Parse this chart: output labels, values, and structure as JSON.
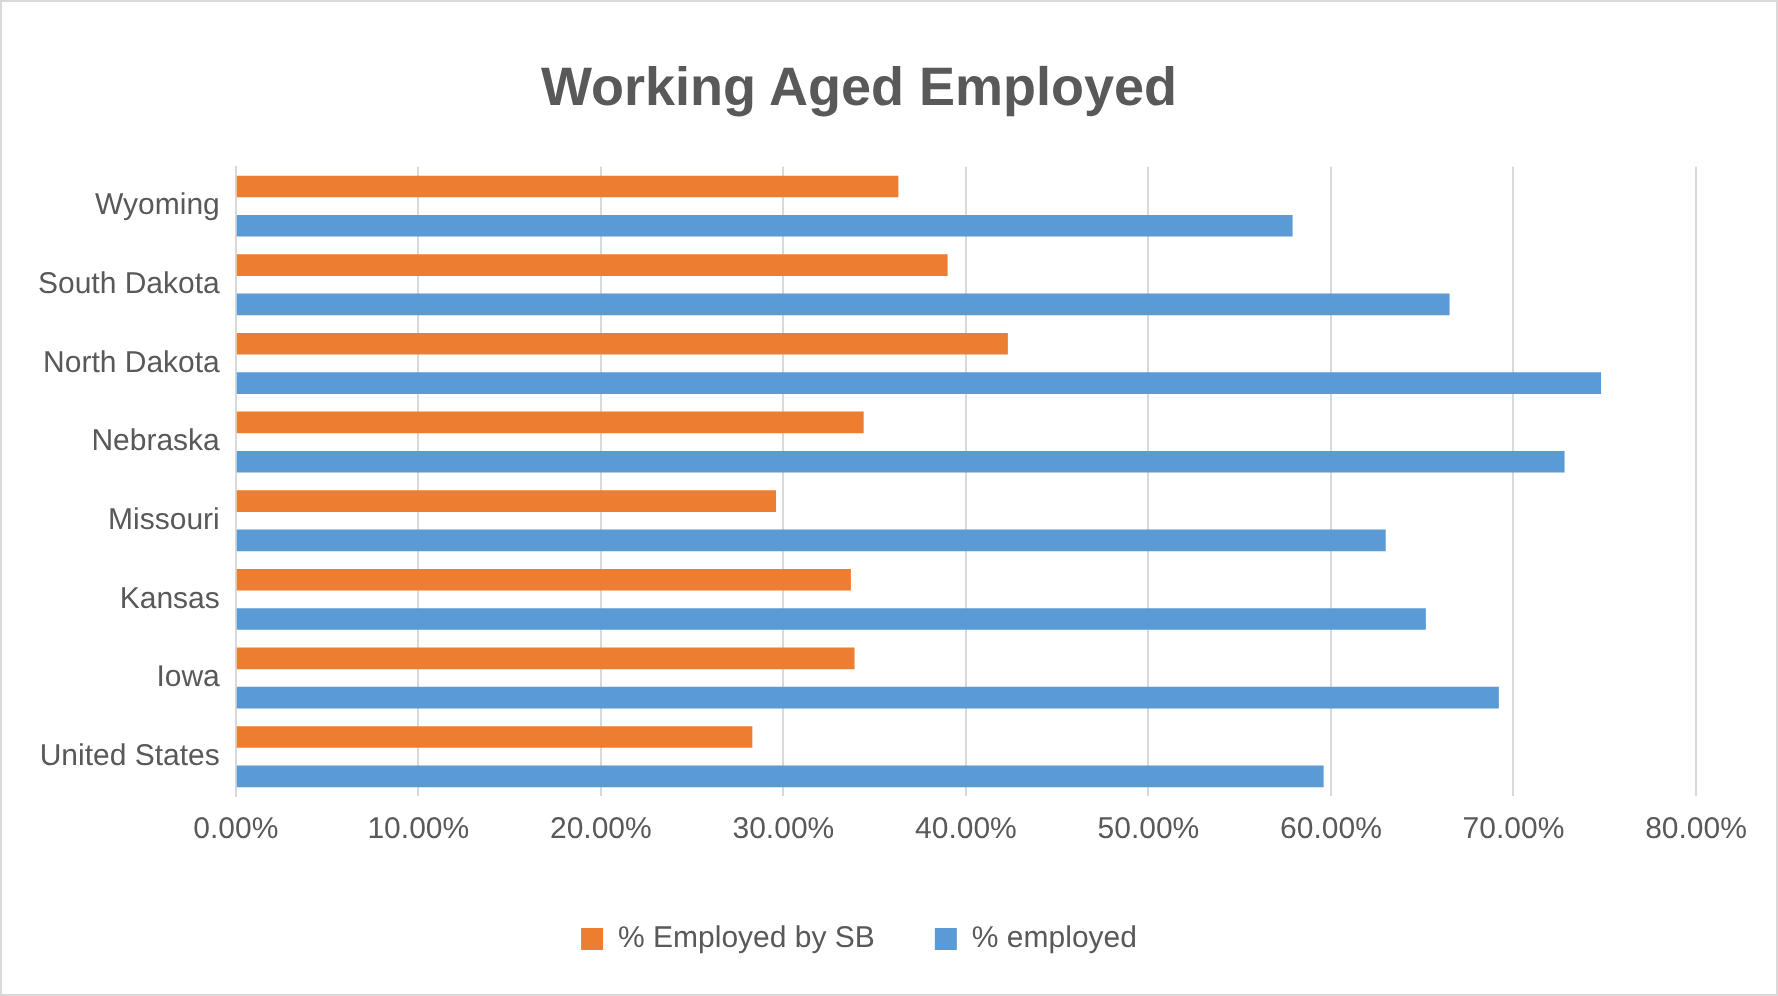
{
  "chart_data": {
    "type": "bar",
    "orientation": "horizontal",
    "title": "Working Aged Employed",
    "categories": [
      "Wyoming",
      "South Dakota",
      "North Dakota",
      "Nebraska",
      "Missouri",
      "Kansas",
      "Iowa",
      "United States"
    ],
    "series": [
      {
        "name": "% Employed by SB",
        "color": "#ed7d31",
        "values": [
          36.3,
          39.0,
          42.3,
          34.4,
          29.6,
          33.7,
          33.9,
          28.3
        ]
      },
      {
        "name": "% employed",
        "color": "#5b9bd5",
        "values": [
          57.9,
          66.5,
          74.8,
          72.8,
          63.0,
          65.2,
          69.2,
          59.6
        ]
      }
    ],
    "xlim": [
      0,
      80
    ],
    "xticks": [
      {
        "value": 0,
        "label": "0.00%"
      },
      {
        "value": 10,
        "label": "10.00%"
      },
      {
        "value": 20,
        "label": "20.00%"
      },
      {
        "value": 30,
        "label": "30.00%"
      },
      {
        "value": 40,
        "label": "40.00%"
      },
      {
        "value": 50,
        "label": "50.00%"
      },
      {
        "value": 60,
        "label": "60.00%"
      },
      {
        "value": 70,
        "label": "70.00%"
      },
      {
        "value": 80,
        "label": "80.00%"
      }
    ],
    "grid": "x",
    "legend": "bottom"
  }
}
